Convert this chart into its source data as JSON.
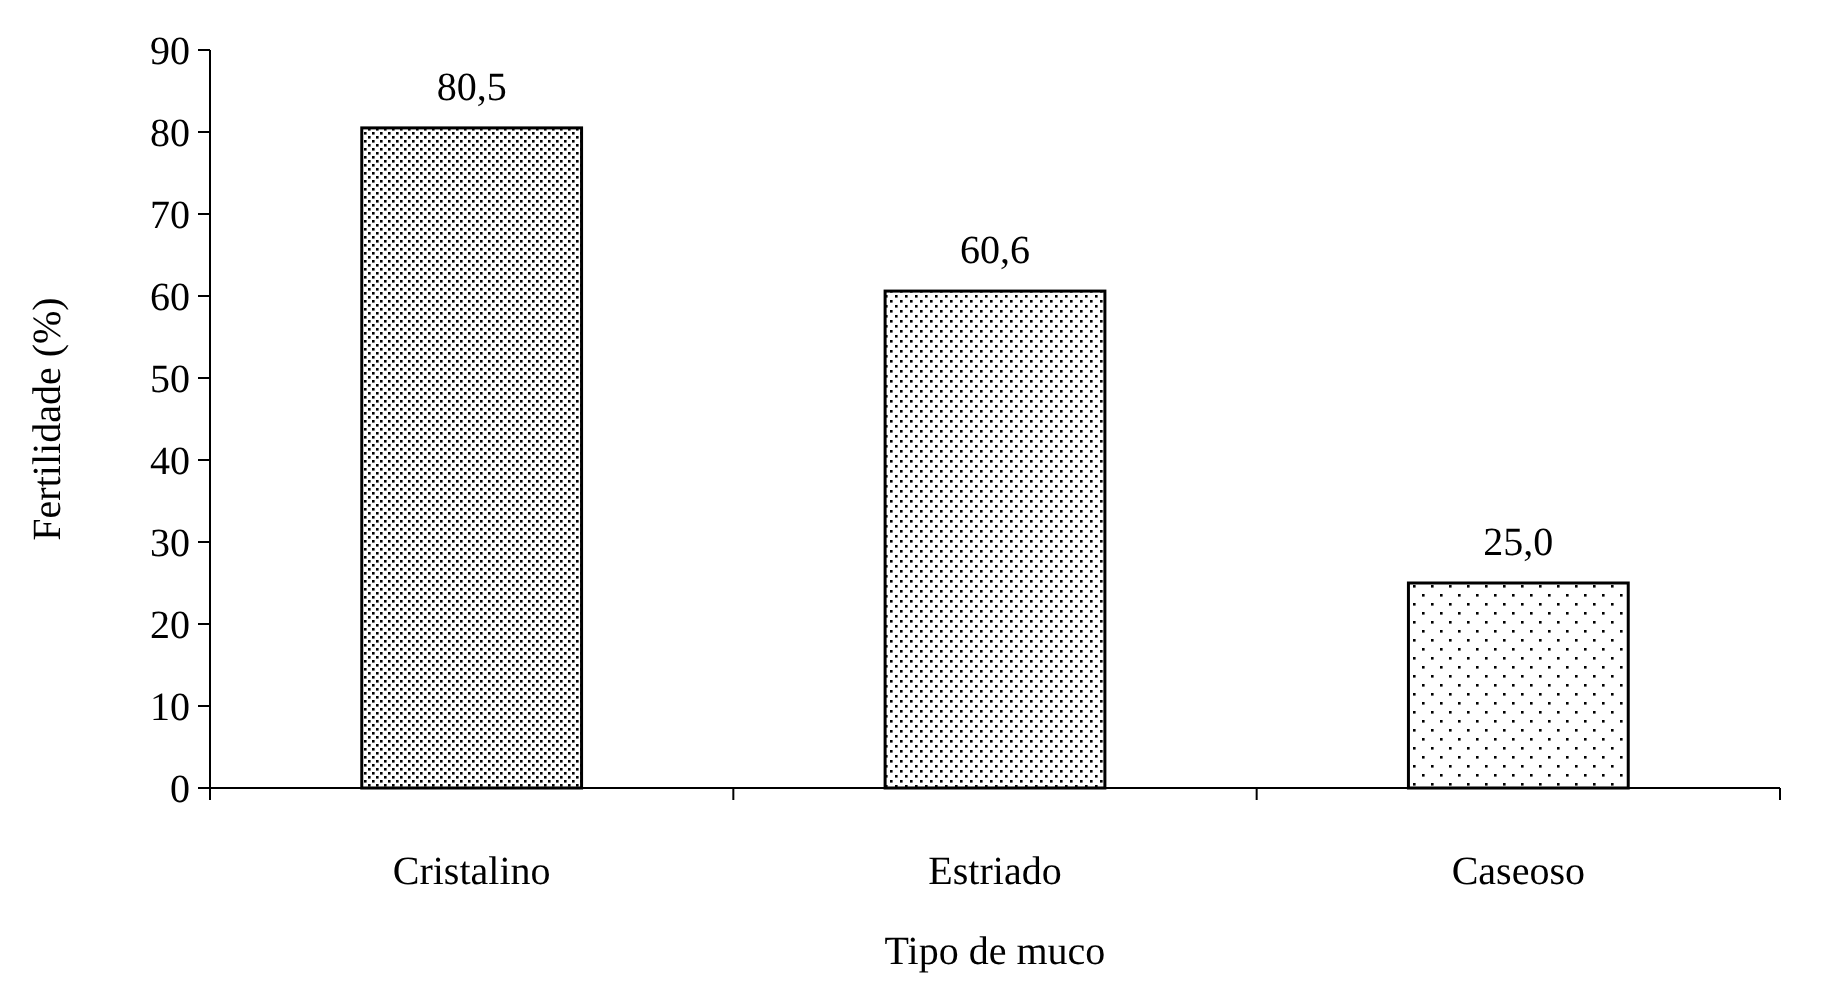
{
  "chart_data": {
    "type": "bar",
    "xlabel": "Tipo de muco",
    "ylabel": "Fertilidade (%)",
    "categories": [
      "Cristalino",
      "Estriado",
      "Caseoso"
    ],
    "values": [
      80.5,
      60.6,
      25.0
    ],
    "value_labels": [
      "80,5",
      "60,6",
      "25,0"
    ],
    "ylim": [
      0,
      90
    ],
    "yticks": [
      0,
      10,
      20,
      30,
      40,
      50,
      60,
      70,
      80,
      90
    ]
  }
}
